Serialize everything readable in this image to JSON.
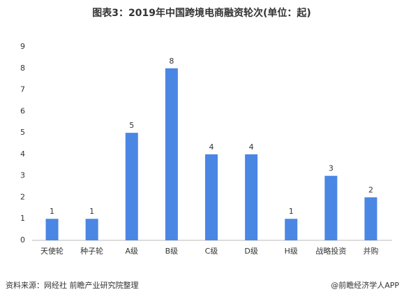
{
  "chart_data": {
    "type": "bar",
    "title": "图表3：2019年中国跨境电商融资轮次(单位：起)",
    "categories": [
      "天使轮",
      "种子轮",
      "A级",
      "B级",
      "C级",
      "D级",
      "H级",
      "战略投资",
      "并购"
    ],
    "values": [
      1,
      1,
      5,
      8,
      4,
      4,
      1,
      3,
      2
    ],
    "color": "#4a86e4",
    "ylim": [
      0,
      9
    ],
    "yticks": [
      0,
      1,
      2,
      3,
      4,
      5,
      6,
      7,
      8,
      9
    ],
    "grid": false,
    "source": "资料来源：网经社 前瞻产业研究院整理",
    "credit": "@前瞻经济学人APP"
  }
}
